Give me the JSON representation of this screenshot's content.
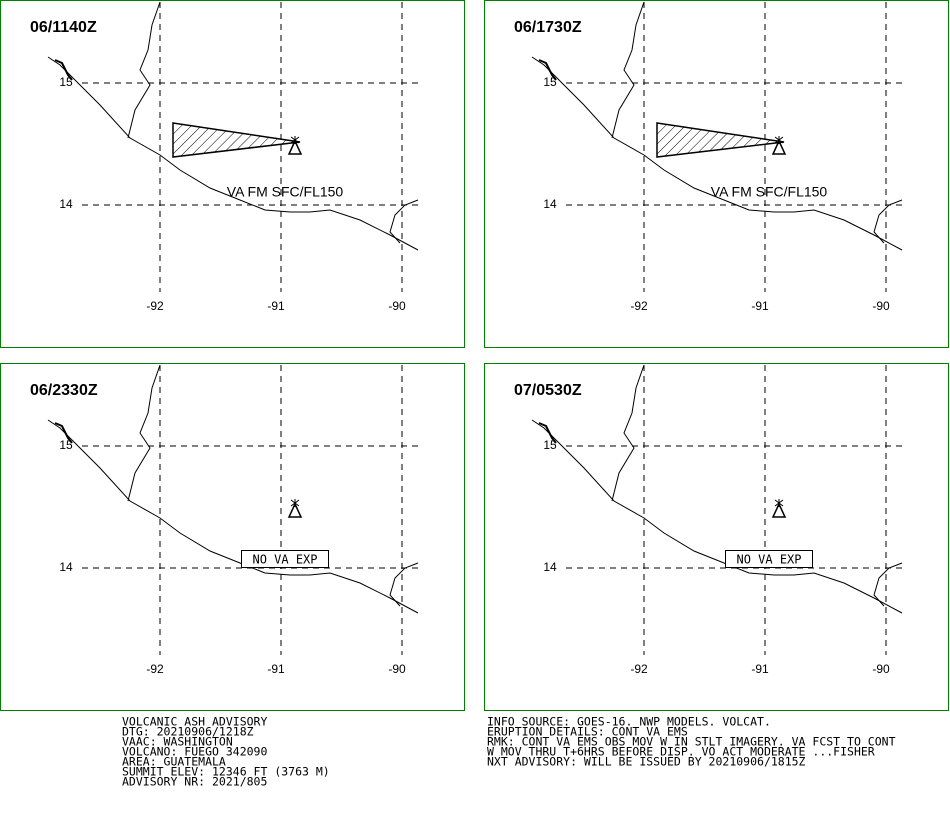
{
  "panels": [
    {
      "time": "06/1140Z",
      "annotation": "VA FM SFC/FL150"
    },
    {
      "time": "06/1730Z",
      "annotation": "VA FM SFC/FL150"
    },
    {
      "time": "06/2330Z",
      "annotation": "NO VA EXP"
    },
    {
      "time": "07/0530Z",
      "annotation": "NO VA EXP"
    }
  ],
  "grid": {
    "lats": [
      "15",
      "14"
    ],
    "lons": [
      "-92",
      "-91",
      "-90"
    ]
  },
  "advisory": {
    "left": [
      "VOLCANIC ASH ADVISORY",
      "DTG: 20210906/1218Z",
      "VAAC: WASHINGTON",
      "VOLCANO: FUEGO 342090",
      "AREA: GUATEMALA",
      "SUMMIT ELEV: 12346 FT (3763 M)",
      "ADVISORY NR: 2021/805"
    ],
    "right": [
      "INFO SOURCE: GOES-16. NWP MODELS. VOLCAT.",
      "ERUPTION DETAILS: CONT VA EMS",
      "RMK: CONT VA EMS OBS MOV W IN STLT IMAGERY. VA FCST TO CONT",
      "W MOV THRU T+6HRS BEFORE DISP. VO ACT MODERATE ...FISHER",
      "NXT ADVISORY: WILL BE ISSUED BY 20210906/1815Z"
    ]
  }
}
